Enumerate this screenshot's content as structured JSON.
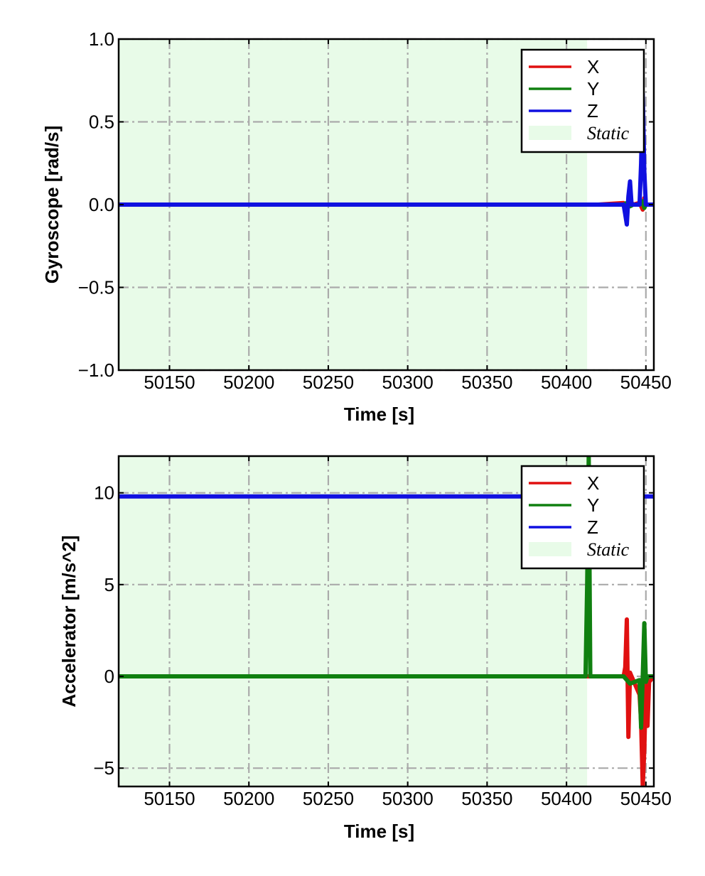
{
  "chart_data": [
    {
      "type": "line",
      "xlabel": "Time [s]",
      "ylabel": "Gyroscope [rad/s]",
      "xlim": [
        50118,
        50455
      ],
      "ylim": [
        -1.0,
        1.0
      ],
      "x_ticks": [
        50150,
        50200,
        50250,
        50300,
        50350,
        50400,
        50450
      ],
      "x_tick_labels": [
        "50150",
        "50200",
        "50250",
        "50300",
        "50350",
        "50400",
        "50450"
      ],
      "y_ticks": [
        1.0,
        0.5,
        0.0,
        -0.5,
        -1.0
      ],
      "y_tick_labels": [
        "1.0",
        "0.5",
        "0.0",
        "−0.5",
        "−1.0"
      ],
      "grid": true,
      "legend_position": "top-right",
      "static_region": {
        "label": "Static",
        "x": [
          50118,
          50413
        ],
        "color": "#e8fbe8"
      },
      "series": [
        {
          "name": "X",
          "color": "#e01010",
          "x": [
            50118,
            50420,
            50436,
            50438,
            50440,
            50442,
            50446,
            50448,
            50449,
            50450,
            50455
          ],
          "y": [
            0.0,
            0.0,
            0.01,
            -0.02,
            0.02,
            0.0,
            0.01,
            -0.03,
            0.04,
            0.0,
            0.0
          ]
        },
        {
          "name": "Y",
          "color": "#108010",
          "x": [
            50118,
            50420,
            50436,
            50438,
            50440,
            50442,
            50446,
            50448,
            50449,
            50450,
            50455
          ],
          "y": [
            0.0,
            0.0,
            0.0,
            0.01,
            -0.01,
            0.0,
            0.0,
            0.02,
            -0.02,
            0.0,
            0.0
          ]
        },
        {
          "name": "Z",
          "color": "#1010e0",
          "x": [
            50118,
            50436,
            50437,
            50438,
            50439,
            50440,
            50441,
            50446,
            50447,
            50448,
            50449,
            50450,
            50452,
            50455
          ],
          "y": [
            0.0,
            0.0,
            -0.06,
            -0.12,
            0.05,
            0.14,
            0.0,
            0.0,
            0.25,
            0.67,
            0.2,
            0.0,
            0.0,
            0.0
          ]
        }
      ]
    },
    {
      "type": "line",
      "xlabel": "Time [s]",
      "ylabel": "Accelerator [m/s^2]",
      "xlim": [
        50118,
        50455
      ],
      "ylim": [
        -6.0,
        12.0
      ],
      "x_ticks": [
        50150,
        50200,
        50250,
        50300,
        50350,
        50400,
        50450
      ],
      "x_tick_labels": [
        "50150",
        "50200",
        "50250",
        "50300",
        "50350",
        "50400",
        "50450"
      ],
      "y_ticks": [
        10,
        5,
        0,
        -5
      ],
      "y_tick_labels": [
        "10",
        "5",
        "0",
        "−5"
      ],
      "grid": true,
      "legend_position": "top-right",
      "static_region": {
        "label": "Static",
        "x": [
          50118,
          50413
        ],
        "color": "#e8fbe8"
      },
      "series": [
        {
          "name": "X",
          "color": "#e01010",
          "x": [
            50118,
            50436,
            50437,
            50438,
            50439,
            50440,
            50441,
            50446,
            50447,
            50448,
            50449,
            50450,
            50451,
            50452,
            50455
          ],
          "y": [
            0.0,
            0.0,
            0.5,
            3.1,
            -3.3,
            0.2,
            0.0,
            -1.0,
            -2.5,
            -6.0,
            -4.0,
            -0.5,
            -2.7,
            -0.3,
            0.0
          ]
        },
        {
          "name": "Y",
          "color": "#108010",
          "x": [
            50118,
            50412,
            50413,
            50414,
            50415,
            50436,
            50440,
            50446,
            50447,
            50448,
            50449,
            50450,
            50451,
            50455
          ],
          "y": [
            0.0,
            0.0,
            5.0,
            12.0,
            0.0,
            0.0,
            -0.4,
            -0.2,
            -2.8,
            0.0,
            2.9,
            -0.3,
            0.0,
            0.0
          ]
        },
        {
          "name": "Z",
          "color": "#1010e0",
          "x": [
            50118,
            50455
          ],
          "y": [
            9.8,
            9.8
          ]
        }
      ]
    }
  ]
}
